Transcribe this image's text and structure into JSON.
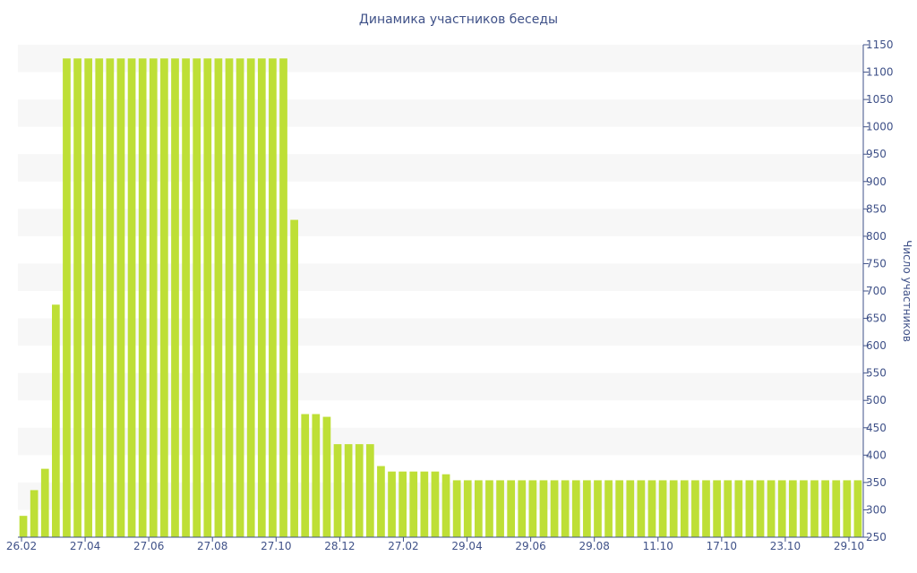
{
  "chart_data": {
    "type": "bar",
    "title": "Динамика участников беседы",
    "xlabel": "",
    "ylabel": "Число участников",
    "ylim": [
      250,
      1150
    ],
    "yticks": [
      250,
      300,
      350,
      400,
      450,
      500,
      550,
      600,
      650,
      700,
      750,
      800,
      850,
      900,
      950,
      1000,
      1050,
      1100,
      1150
    ],
    "y_axis_side": "right",
    "grid": "alternating horizontal bands",
    "x_tick_labels": [
      "26.02",
      "27.04",
      "27.06",
      "27.08",
      "27.10",
      "28.12",
      "27.02",
      "29.04",
      "29.06",
      "29.08",
      "11.10",
      "17.10",
      "23.10",
      "29.10"
    ],
    "values": [
      289,
      336,
      375,
      675,
      1125,
      1125,
      1125,
      1125,
      1125,
      1125,
      1125,
      1125,
      1125,
      1125,
      1125,
      1125,
      1125,
      1125,
      1125,
      1125,
      1125,
      1125,
      1125,
      1125,
      1125,
      830,
      475,
      475,
      470,
      420,
      420,
      420,
      420,
      380,
      370,
      370,
      370,
      370,
      370,
      365,
      354,
      354,
      354,
      354,
      354,
      354,
      354,
      354,
      354,
      354,
      354,
      354,
      354,
      354,
      354,
      354,
      354,
      354,
      354,
      354,
      354,
      354,
      354,
      354,
      354,
      354,
      354,
      354,
      354,
      354,
      354,
      354,
      354,
      354,
      354,
      354,
      354,
      354
    ],
    "colors": {
      "bar": "#bedf36",
      "band": "#f7f7f7",
      "text": "#3f5188",
      "axis": "#3f5188"
    }
  }
}
